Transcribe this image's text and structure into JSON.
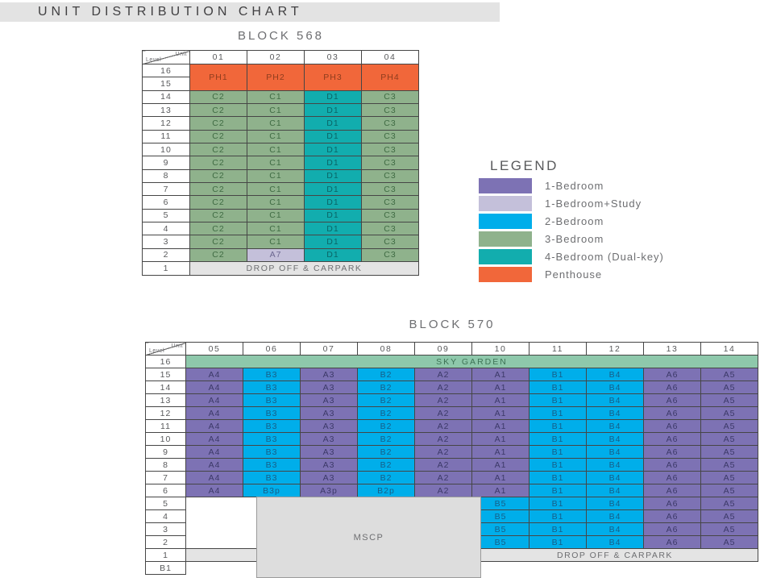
{
  "title": "UNIT DISTRIBUTION CHART",
  "colors": {
    "bed1": "#7D72B4",
    "bed1_text": "#3C3968",
    "bed1s": "#C4C0DA",
    "bed1s_text": "#6C6790",
    "bed2": "#00AEEA",
    "bed2_text": "#175E88",
    "bed3": "#8FB28C",
    "bed3_text": "#3F6B43",
    "bed4": "#12ADAE",
    "bed4_text": "#0A6466",
    "ph": "#F1673A",
    "ph_text": "#8E3D1E",
    "sky": "#8EC8AB",
    "sky_text": "#3D7355",
    "gray": "#E4E4E4",
    "gray_text": "#6D6E71",
    "mscp": "#DDDDDD",
    "mscp_text": "#6D6E71"
  },
  "legend": {
    "title": "LEGEND",
    "items": [
      {
        "label": "1-Bedroom",
        "color": "#7D72B4",
        "key": "bed1"
      },
      {
        "label": "1-Bedroom+Study",
        "color": "#C4C0DA",
        "key": "bed1s"
      },
      {
        "label": "2-Bedroom",
        "color": "#00AEEA",
        "key": "bed2"
      },
      {
        "label": "3-Bedroom",
        "color": "#8FB28C",
        "key": "bed3"
      },
      {
        "label": "4-Bedroom (Dual-key)",
        "color": "#12ADAE",
        "key": "bed4"
      },
      {
        "label": "Penthouse",
        "color": "#F1673A",
        "key": "ph"
      }
    ]
  },
  "chart_data": {
    "type": "table",
    "blocks": [
      {
        "title": "BLOCK 568",
        "corner": {
          "top": "Unit",
          "bottom": "Level"
        },
        "columns": [
          "01",
          "02",
          "03",
          "04"
        ],
        "rows": [
          {
            "level": "16",
            "cells": [
              [
                "PH1",
                "ph",
                1,
                2
              ],
              [
                "PH2",
                "ph",
                1,
                2
              ],
              [
                "PH3",
                "ph",
                1,
                2
              ],
              [
                "PH4",
                "ph",
                1,
                2
              ]
            ]
          },
          {
            "level": "15",
            "cells": []
          },
          {
            "level": "14",
            "cells": [
              [
                "C2",
                "bed3"
              ],
              [
                "C1",
                "bed3"
              ],
              [
                "D1",
                "bed4"
              ],
              [
                "C3",
                "bed3"
              ]
            ]
          },
          {
            "level": "13",
            "cells": [
              [
                "C2",
                "bed3"
              ],
              [
                "C1",
                "bed3"
              ],
              [
                "D1",
                "bed4"
              ],
              [
                "C3",
                "bed3"
              ]
            ]
          },
          {
            "level": "12",
            "cells": [
              [
                "C2",
                "bed3"
              ],
              [
                "C1",
                "bed3"
              ],
              [
                "D1",
                "bed4"
              ],
              [
                "C3",
                "bed3"
              ]
            ]
          },
          {
            "level": "11",
            "cells": [
              [
                "C2",
                "bed3"
              ],
              [
                "C1",
                "bed3"
              ],
              [
                "D1",
                "bed4"
              ],
              [
                "C3",
                "bed3"
              ]
            ]
          },
          {
            "level": "10",
            "cells": [
              [
                "C2",
                "bed3"
              ],
              [
                "C1",
                "bed3"
              ],
              [
                "D1",
                "bed4"
              ],
              [
                "C3",
                "bed3"
              ]
            ]
          },
          {
            "level": "9",
            "cells": [
              [
                "C2",
                "bed3"
              ],
              [
                "C1",
                "bed3"
              ],
              [
                "D1",
                "bed4"
              ],
              [
                "C3",
                "bed3"
              ]
            ]
          },
          {
            "level": "8",
            "cells": [
              [
                "C2",
                "bed3"
              ],
              [
                "C1",
                "bed3"
              ],
              [
                "D1",
                "bed4"
              ],
              [
                "C3",
                "bed3"
              ]
            ]
          },
          {
            "level": "7",
            "cells": [
              [
                "C2",
                "bed3"
              ],
              [
                "C1",
                "bed3"
              ],
              [
                "D1",
                "bed4"
              ],
              [
                "C3",
                "bed3"
              ]
            ]
          },
          {
            "level": "6",
            "cells": [
              [
                "C2",
                "bed3"
              ],
              [
                "C1",
                "bed3"
              ],
              [
                "D1",
                "bed4"
              ],
              [
                "C3",
                "bed3"
              ]
            ]
          },
          {
            "level": "5",
            "cells": [
              [
                "C2",
                "bed3"
              ],
              [
                "C1",
                "bed3"
              ],
              [
                "D1",
                "bed4"
              ],
              [
                "C3",
                "bed3"
              ]
            ]
          },
          {
            "level": "4",
            "cells": [
              [
                "C2",
                "bed3"
              ],
              [
                "C1",
                "bed3"
              ],
              [
                "D1",
                "bed4"
              ],
              [
                "C3",
                "bed3"
              ]
            ]
          },
          {
            "level": "3",
            "cells": [
              [
                "C2",
                "bed3"
              ],
              [
                "C1",
                "bed3"
              ],
              [
                "D1",
                "bed4"
              ],
              [
                "C3",
                "bed3"
              ]
            ]
          },
          {
            "level": "2",
            "cells": [
              [
                "C2",
                "bed3"
              ],
              [
                "A7",
                "bed1s"
              ],
              [
                "D1",
                "bed4"
              ],
              [
                "C3",
                "bed3"
              ]
            ]
          },
          {
            "level": "1",
            "cells": [
              [
                "DROP OFF & CARPARK",
                "gray",
                4,
                1
              ]
            ]
          }
        ]
      },
      {
        "title": "BLOCK 570",
        "corner": {
          "top": "Unit",
          "bottom": "Level"
        },
        "columns": [
          "05",
          "06",
          "07",
          "08",
          "09",
          "10",
          "11",
          "12",
          "13",
          "14"
        ],
        "mscp": {
          "label": "MSCP"
        },
        "rows": [
          {
            "level": "16",
            "cells": [
              [
                "SKY GARDEN",
                "sky",
                10,
                1
              ]
            ]
          },
          {
            "level": "15",
            "cells": [
              [
                "A4",
                "bed1"
              ],
              [
                "B3",
                "bed2"
              ],
              [
                "A3",
                "bed1"
              ],
              [
                "B2",
                "bed2"
              ],
              [
                "A2",
                "bed1"
              ],
              [
                "A1",
                "bed1"
              ],
              [
                "B1",
                "bed2"
              ],
              [
                "B4",
                "bed2"
              ],
              [
                "A6",
                "bed1"
              ],
              [
                "A5",
                "bed1"
              ]
            ]
          },
          {
            "level": "14",
            "cells": [
              [
                "A4",
                "bed1"
              ],
              [
                "B3",
                "bed2"
              ],
              [
                "A3",
                "bed1"
              ],
              [
                "B2",
                "bed2"
              ],
              [
                "A2",
                "bed1"
              ],
              [
                "A1",
                "bed1"
              ],
              [
                "B1",
                "bed2"
              ],
              [
                "B4",
                "bed2"
              ],
              [
                "A6",
                "bed1"
              ],
              [
                "A5",
                "bed1"
              ]
            ]
          },
          {
            "level": "13",
            "cells": [
              [
                "A4",
                "bed1"
              ],
              [
                "B3",
                "bed2"
              ],
              [
                "A3",
                "bed1"
              ],
              [
                "B2",
                "bed2"
              ],
              [
                "A2",
                "bed1"
              ],
              [
                "A1",
                "bed1"
              ],
              [
                "B1",
                "bed2"
              ],
              [
                "B4",
                "bed2"
              ],
              [
                "A6",
                "bed1"
              ],
              [
                "A5",
                "bed1"
              ]
            ]
          },
          {
            "level": "12",
            "cells": [
              [
                "A4",
                "bed1"
              ],
              [
                "B3",
                "bed2"
              ],
              [
                "A3",
                "bed1"
              ],
              [
                "B2",
                "bed2"
              ],
              [
                "A2",
                "bed1"
              ],
              [
                "A1",
                "bed1"
              ],
              [
                "B1",
                "bed2"
              ],
              [
                "B4",
                "bed2"
              ],
              [
                "A6",
                "bed1"
              ],
              [
                "A5",
                "bed1"
              ]
            ]
          },
          {
            "level": "11",
            "cells": [
              [
                "A4",
                "bed1"
              ],
              [
                "B3",
                "bed2"
              ],
              [
                "A3",
                "bed1"
              ],
              [
                "B2",
                "bed2"
              ],
              [
                "A2",
                "bed1"
              ],
              [
                "A1",
                "bed1"
              ],
              [
                "B1",
                "bed2"
              ],
              [
                "B4",
                "bed2"
              ],
              [
                "A6",
                "bed1"
              ],
              [
                "A5",
                "bed1"
              ]
            ]
          },
          {
            "level": "10",
            "cells": [
              [
                "A4",
                "bed1"
              ],
              [
                "B3",
                "bed2"
              ],
              [
                "A3",
                "bed1"
              ],
              [
                "B2",
                "bed2"
              ],
              [
                "A2",
                "bed1"
              ],
              [
                "A1",
                "bed1"
              ],
              [
                "B1",
                "bed2"
              ],
              [
                "B4",
                "bed2"
              ],
              [
                "A6",
                "bed1"
              ],
              [
                "A5",
                "bed1"
              ]
            ]
          },
          {
            "level": "9",
            "cells": [
              [
                "A4",
                "bed1"
              ],
              [
                "B3",
                "bed2"
              ],
              [
                "A3",
                "bed1"
              ],
              [
                "B2",
                "bed2"
              ],
              [
                "A2",
                "bed1"
              ],
              [
                "A1",
                "bed1"
              ],
              [
                "B1",
                "bed2"
              ],
              [
                "B4",
                "bed2"
              ],
              [
                "A6",
                "bed1"
              ],
              [
                "A5",
                "bed1"
              ]
            ]
          },
          {
            "level": "8",
            "cells": [
              [
                "A4",
                "bed1"
              ],
              [
                "B3",
                "bed2"
              ],
              [
                "A3",
                "bed1"
              ],
              [
                "B2",
                "bed2"
              ],
              [
                "A2",
                "bed1"
              ],
              [
                "A1",
                "bed1"
              ],
              [
                "B1",
                "bed2"
              ],
              [
                "B4",
                "bed2"
              ],
              [
                "A6",
                "bed1"
              ],
              [
                "A5",
                "bed1"
              ]
            ]
          },
          {
            "level": "7",
            "cells": [
              [
                "A4",
                "bed1"
              ],
              [
                "B3",
                "bed2"
              ],
              [
                "A3",
                "bed1"
              ],
              [
                "B2",
                "bed2"
              ],
              [
                "A2",
                "bed1"
              ],
              [
                "A1",
                "bed1"
              ],
              [
                "B1",
                "bed2"
              ],
              [
                "B4",
                "bed2"
              ],
              [
                "A6",
                "bed1"
              ],
              [
                "A5",
                "bed1"
              ]
            ]
          },
          {
            "level": "6",
            "cells": [
              [
                "A4",
                "bed1"
              ],
              [
                "B3p",
                "bed2"
              ],
              [
                "A3p",
                "bed1"
              ],
              [
                "B2p",
                "bed2"
              ],
              [
                "A2",
                "bed1"
              ],
              [
                "A1",
                "bed1"
              ],
              [
                "B1",
                "bed2"
              ],
              [
                "B4",
                "bed2"
              ],
              [
                "A6",
                "bed1"
              ],
              [
                "A5",
                "bed1"
              ]
            ]
          },
          {
            "level": "5",
            "cells": [
              [
                "",
                "empty",
                5,
                1
              ],
              [
                "B5",
                "bed2"
              ],
              [
                "B1",
                "bed2"
              ],
              [
                "B4",
                "bed2"
              ],
              [
                "A6",
                "bed1"
              ],
              [
                "A5",
                "bed1"
              ]
            ]
          },
          {
            "level": "4",
            "cells": [
              [
                "",
                "empty",
                5,
                1
              ],
              [
                "B5",
                "bed2"
              ],
              [
                "B1",
                "bed2"
              ],
              [
                "B4",
                "bed2"
              ],
              [
                "A6",
                "bed1"
              ],
              [
                "A5",
                "bed1"
              ]
            ]
          },
          {
            "level": "3",
            "cells": [
              [
                "",
                "empty",
                5,
                1
              ],
              [
                "B5",
                "bed2"
              ],
              [
                "B1",
                "bed2"
              ],
              [
                "B4",
                "bed2"
              ],
              [
                "A6",
                "bed1"
              ],
              [
                "A5",
                "bed1"
              ]
            ]
          },
          {
            "level": "2",
            "cells": [
              [
                "",
                "empty",
                5,
                1
              ],
              [
                "B5",
                "bed2"
              ],
              [
                "B1",
                "bed2"
              ],
              [
                "B4",
                "bed2"
              ],
              [
                "A6",
                "bed1"
              ],
              [
                "A5",
                "bed1"
              ]
            ]
          },
          {
            "level": "1",
            "cells": [
              [
                "",
                "gray",
                5,
                1
              ],
              [
                "DROP OFF & CARPARK",
                "gray",
                5,
                1
              ]
            ]
          },
          {
            "level": "B1",
            "cells": [
              [
                "",
                "empty",
                10,
                1
              ]
            ]
          }
        ]
      }
    ]
  }
}
